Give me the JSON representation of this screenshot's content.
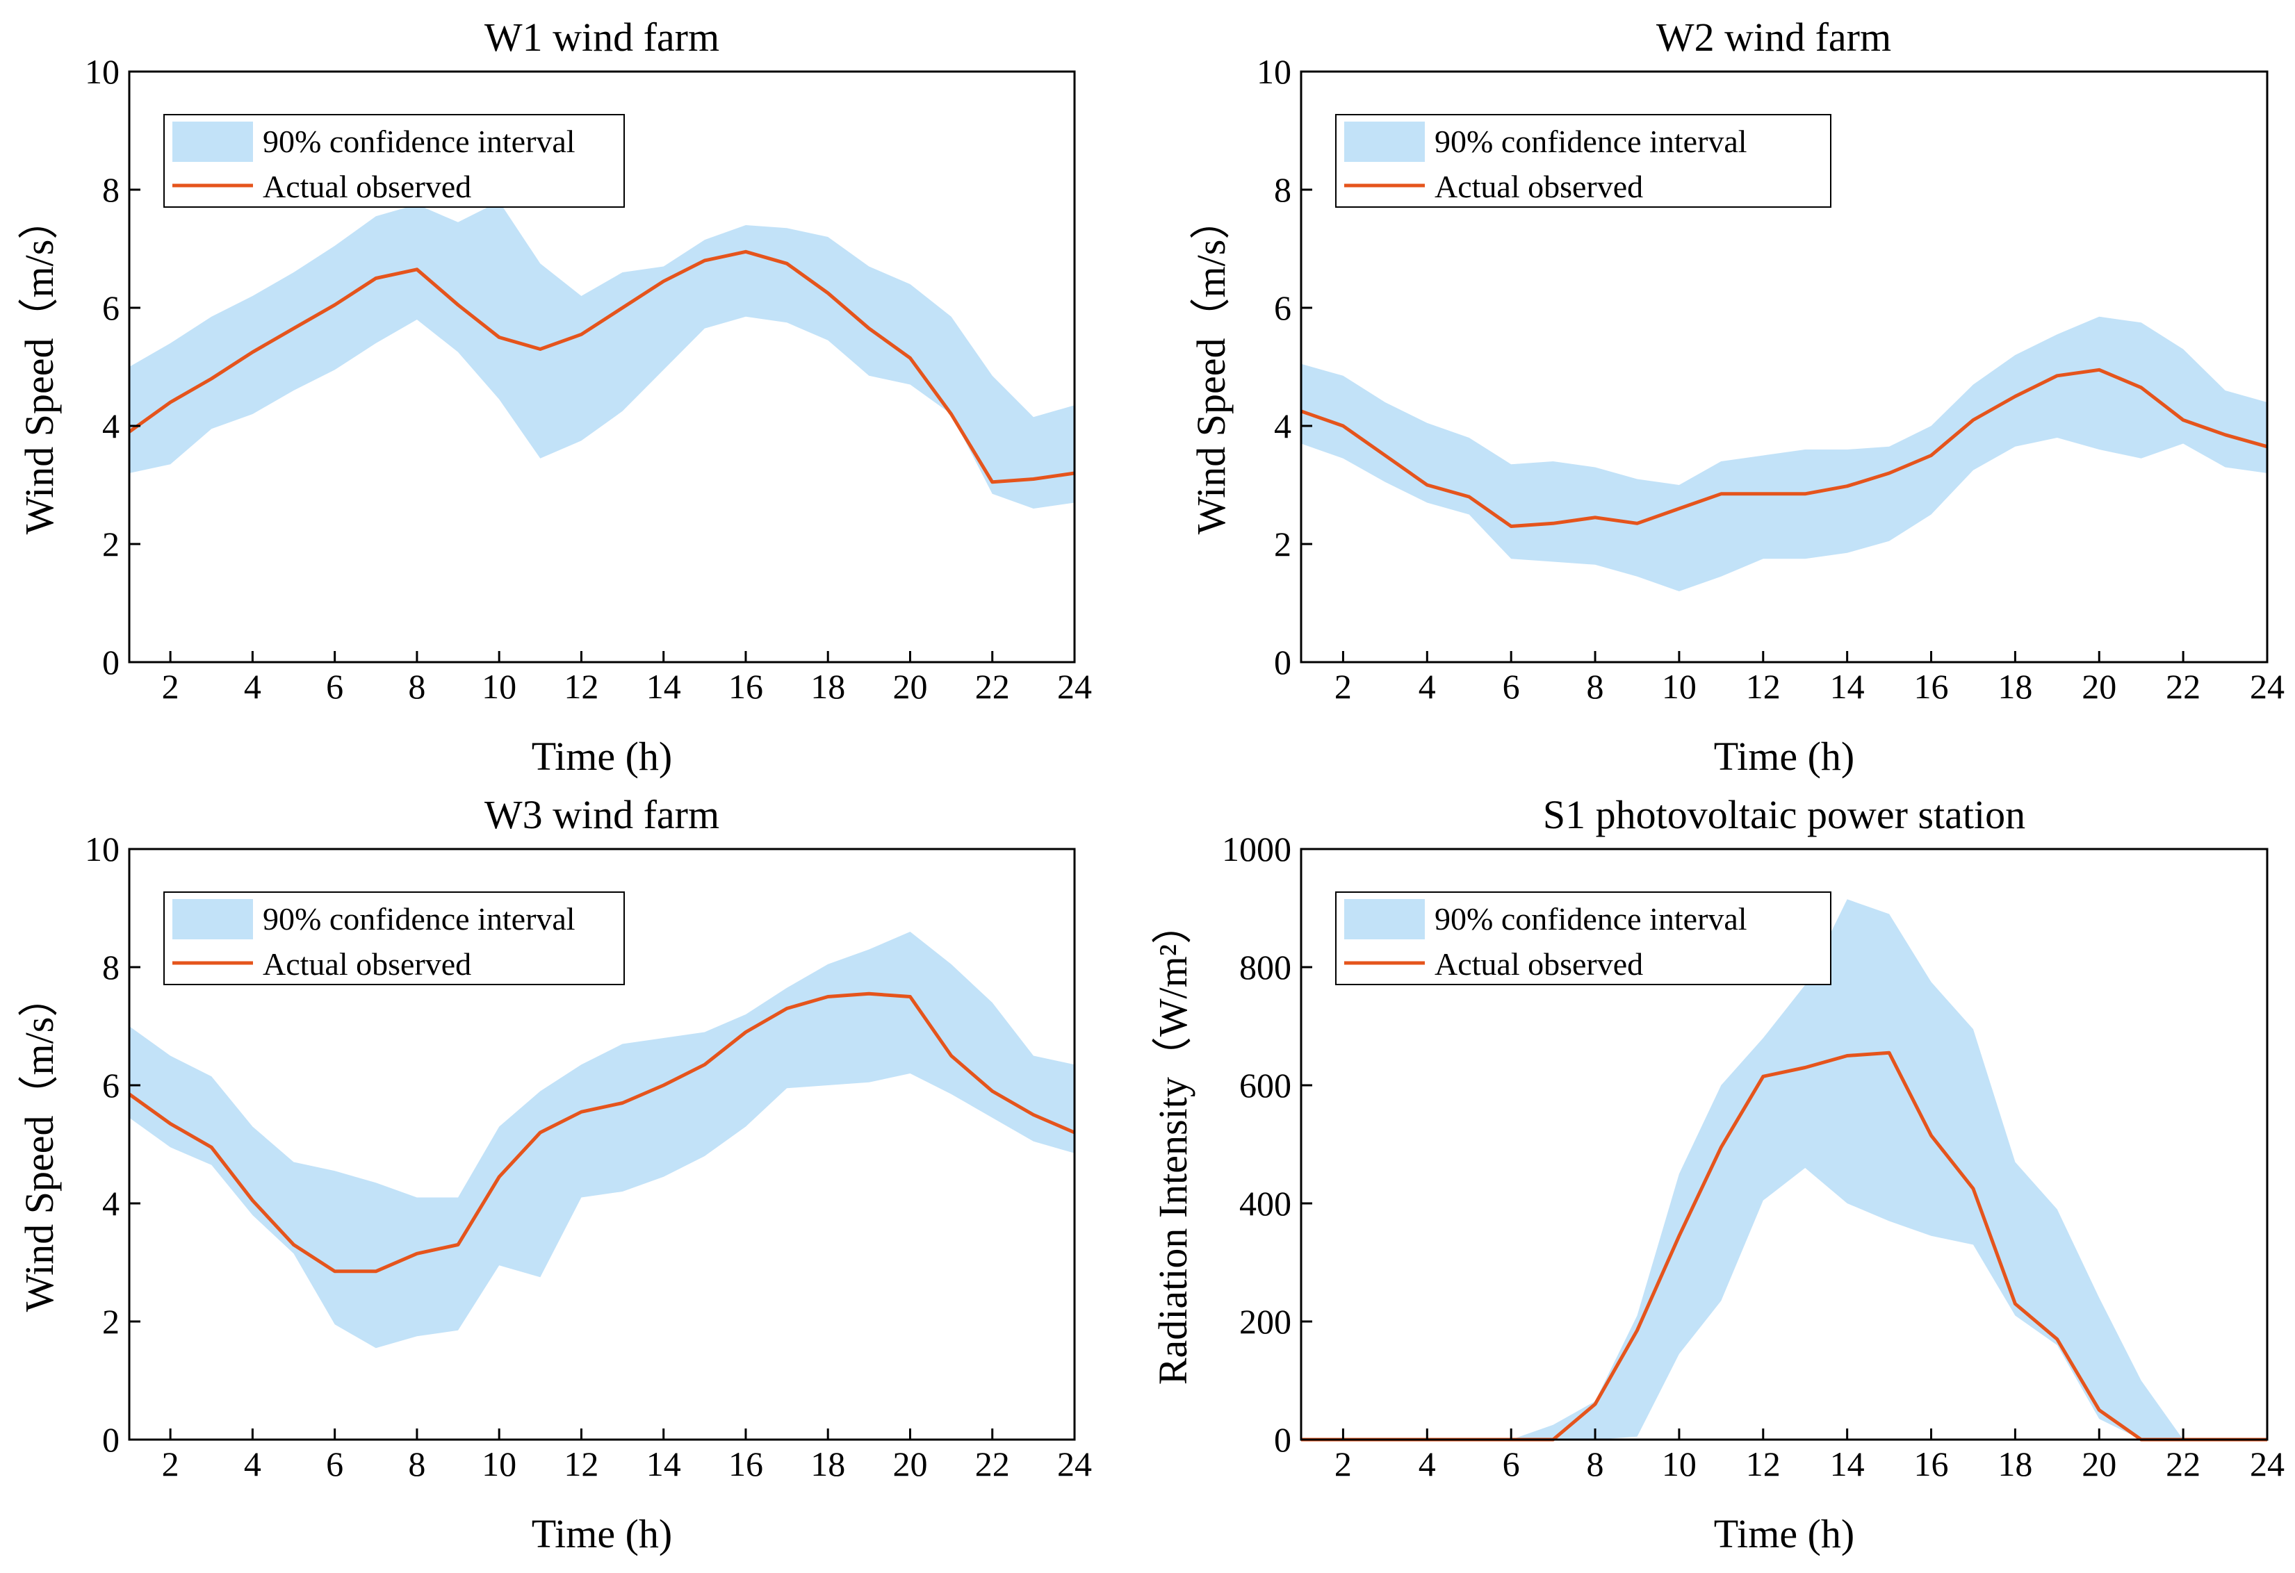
{
  "figure": {
    "colors": {
      "band": "#c2e2f8",
      "line": "#e5541c",
      "axis": "#000000"
    }
  },
  "chart_data": [
    {
      "type": "area",
      "title": "W1 wind farm",
      "xlabel": "Time (h)",
      "ylabel": "Wind Speed（m/s）",
      "xlim": [
        1,
        24
      ],
      "ylim": [
        0,
        10
      ],
      "xticks": [
        2,
        4,
        6,
        8,
        10,
        12,
        14,
        16,
        18,
        20,
        22,
        24
      ],
      "yticks": [
        0,
        2,
        4,
        6,
        8,
        10
      ],
      "legend": {
        "band_label": "90% confidence interval",
        "line_label": "Actual observed",
        "position": "top-left"
      },
      "x": [
        1,
        2,
        3,
        4,
        5,
        6,
        7,
        8,
        9,
        10,
        11,
        12,
        13,
        14,
        15,
        16,
        17,
        18,
        19,
        20,
        21,
        22,
        23,
        24
      ],
      "upper": [
        5.0,
        5.4,
        5.85,
        6.2,
        6.6,
        7.05,
        7.55,
        7.75,
        7.45,
        7.8,
        6.75,
        6.2,
        6.6,
        6.7,
        7.15,
        7.4,
        7.35,
        7.2,
        6.7,
        6.4,
        5.85,
        4.85,
        4.15,
        4.35
      ],
      "lower": [
        3.2,
        3.35,
        3.95,
        4.2,
        4.6,
        4.95,
        5.4,
        5.8,
        5.25,
        4.45,
        3.45,
        3.75,
        4.25,
        4.95,
        5.65,
        5.85,
        5.75,
        5.45,
        4.85,
        4.7,
        4.2,
        2.85,
        2.6,
        2.7
      ],
      "observed": [
        3.9,
        4.4,
        4.8,
        5.25,
        5.65,
        6.05,
        6.5,
        6.65,
        6.05,
        5.5,
        5.3,
        5.55,
        6.0,
        6.45,
        6.8,
        6.95,
        6.75,
        6.25,
        5.65,
        5.15,
        4.2,
        3.05,
        3.1,
        3.2
      ]
    },
    {
      "type": "area",
      "title": "W2 wind farm",
      "xlabel": "Time (h)",
      "ylabel": "Wind Speed（m/s）",
      "xlim": [
        1,
        24
      ],
      "ylim": [
        0,
        10
      ],
      "xticks": [
        2,
        4,
        6,
        8,
        10,
        12,
        14,
        16,
        18,
        20,
        22,
        24
      ],
      "yticks": [
        0,
        2,
        4,
        6,
        8,
        10
      ],
      "legend": {
        "band_label": "90%  confidence interval",
        "line_label": "Actual observed",
        "position": "top-left"
      },
      "x": [
        1,
        2,
        3,
        4,
        5,
        6,
        7,
        8,
        9,
        10,
        11,
        12,
        13,
        14,
        15,
        16,
        17,
        18,
        19,
        20,
        21,
        22,
        23,
        24
      ],
      "upper": [
        5.05,
        4.85,
        4.4,
        4.05,
        3.8,
        3.35,
        3.4,
        3.3,
        3.1,
        3.0,
        3.4,
        3.5,
        3.6,
        3.6,
        3.65,
        4.0,
        4.7,
        5.2,
        5.55,
        5.85,
        5.75,
        5.3,
        4.6,
        4.4
      ],
      "lower": [
        3.7,
        3.45,
        3.05,
        2.7,
        2.5,
        1.75,
        1.7,
        1.65,
        1.45,
        1.2,
        1.45,
        1.75,
        1.75,
        1.85,
        2.05,
        2.5,
        3.25,
        3.65,
        3.8,
        3.6,
        3.45,
        3.7,
        3.3,
        3.2
      ],
      "observed": [
        4.25,
        4.0,
        3.5,
        3.0,
        2.8,
        2.3,
        2.35,
        2.45,
        2.35,
        2.6,
        2.85,
        2.85,
        2.85,
        2.98,
        3.2,
        3.5,
        4.1,
        4.5,
        4.85,
        4.95,
        4.65,
        4.1,
        3.85,
        3.65
      ]
    },
    {
      "type": "area",
      "title": "W3 wind farm",
      "xlabel": "Time (h)",
      "ylabel": "Wind Speed（m/s）",
      "xlim": [
        1,
        24
      ],
      "ylim": [
        0,
        10
      ],
      "xticks": [
        2,
        4,
        6,
        8,
        10,
        12,
        14,
        16,
        18,
        20,
        22,
        24
      ],
      "yticks": [
        0,
        2,
        4,
        6,
        8,
        10
      ],
      "legend": {
        "band_label": "90% confidence interval",
        "line_label": "Actual observed",
        "position": "top-left"
      },
      "x": [
        1,
        2,
        3,
        4,
        5,
        6,
        7,
        8,
        9,
        10,
        11,
        12,
        13,
        14,
        15,
        16,
        17,
        18,
        19,
        20,
        21,
        22,
        23,
        24
      ],
      "upper": [
        7.0,
        6.5,
        6.15,
        5.3,
        4.7,
        4.55,
        4.35,
        4.1,
        4.1,
        5.3,
        5.9,
        6.35,
        6.7,
        6.8,
        6.9,
        7.2,
        7.65,
        8.05,
        8.3,
        8.6,
        8.05,
        7.4,
        6.5,
        6.35
      ],
      "lower": [
        5.45,
        4.95,
        4.65,
        3.8,
        3.15,
        1.95,
        1.55,
        1.75,
        1.85,
        2.95,
        2.75,
        4.1,
        4.2,
        4.45,
        4.8,
        5.3,
        5.95,
        6.0,
        6.05,
        6.2,
        5.85,
        5.45,
        5.05,
        4.85
      ],
      "observed": [
        5.85,
        5.35,
        4.95,
        4.05,
        3.3,
        2.85,
        2.85,
        3.15,
        3.3,
        4.45,
        5.2,
        5.55,
        5.7,
        6.0,
        6.35,
        6.9,
        7.3,
        7.5,
        7.55,
        7.5,
        6.5,
        5.9,
        5.5,
        5.2
      ]
    },
    {
      "type": "area",
      "title": "S1 photovoltaic power station",
      "xlabel": "Time (h)",
      "ylabel": "Radiation Intensity（W/m²）",
      "xlim": [
        1,
        24
      ],
      "ylim": [
        0,
        1000
      ],
      "xticks": [
        2,
        4,
        6,
        8,
        10,
        12,
        14,
        16,
        18,
        20,
        22,
        24
      ],
      "yticks": [
        0,
        200,
        400,
        600,
        800,
        1000
      ],
      "legend": {
        "band_label": "90%  confidence interval",
        "line_label": "Actual observed",
        "position": "top-left"
      },
      "x": [
        1,
        2,
        3,
        4,
        5,
        6,
        7,
        8,
        9,
        10,
        11,
        12,
        13,
        14,
        15,
        16,
        17,
        18,
        19,
        20,
        21,
        22,
        23,
        24
      ],
      "upper": [
        0,
        0,
        0,
        0,
        0,
        0,
        25,
        65,
        210,
        450,
        600,
        680,
        770,
        915,
        890,
        775,
        695,
        470,
        390,
        240,
        100,
        0,
        0,
        0
      ],
      "lower": [
        0,
        0,
        0,
        0,
        0,
        0,
        0,
        0,
        5,
        145,
        235,
        405,
        460,
        400,
        370,
        345,
        330,
        210,
        160,
        35,
        0,
        0,
        0,
        0
      ],
      "observed": [
        0,
        0,
        0,
        0,
        0,
        0,
        0,
        60,
        185,
        345,
        495,
        615,
        630,
        650,
        655,
        515,
        425,
        230,
        170,
        50,
        0,
        0,
        0,
        0
      ]
    }
  ]
}
